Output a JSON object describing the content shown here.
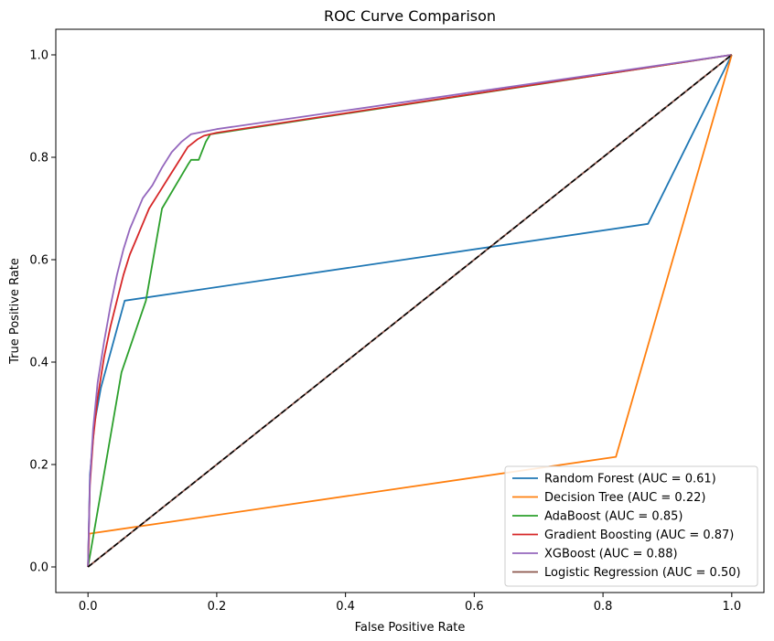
{
  "chart_data": {
    "type": "line",
    "title": "ROC Curve Comparison",
    "xlabel": "False Positive Rate",
    "ylabel": "True Positive Rate",
    "xlim": [
      -0.05,
      1.05
    ],
    "ylim": [
      -0.05,
      1.05
    ],
    "xticks": [
      "0.0",
      "0.2",
      "0.4",
      "0.6",
      "0.8",
      "1.0"
    ],
    "yticks": [
      "0.0",
      "0.2",
      "0.4",
      "0.6",
      "0.8",
      "1.0"
    ],
    "grid": false,
    "legend_position": "lower-right",
    "series": [
      {
        "name": "Random Forest (AUC = 0.61)",
        "color": "#1f77b4",
        "x": [
          0,
          0.003,
          0.01,
          0.02,
          0.057,
          0.87,
          1.0
        ],
        "y": [
          0,
          0.18,
          0.28,
          0.35,
          0.52,
          0.67,
          1.0
        ]
      },
      {
        "name": "Decision Tree (AUC = 0.22)",
        "color": "#ff7f0e",
        "x": [
          0,
          0.002,
          0.82,
          1.0
        ],
        "y": [
          0,
          0.065,
          0.215,
          1.0
        ]
      },
      {
        "name": "AdaBoost (AUC = 0.85)",
        "color": "#2ca02c",
        "x": [
          0,
          0.052,
          0.09,
          0.115,
          0.155,
          0.16,
          0.172,
          0.183,
          0.19,
          1.0
        ],
        "y": [
          0,
          0.38,
          0.52,
          0.7,
          0.785,
          0.795,
          0.795,
          0.83,
          0.845,
          1.0
        ]
      },
      {
        "name": "Gradient Boosting (AUC = 0.87)",
        "color": "#d62728",
        "x": [
          0,
          0.003,
          0.008,
          0.015,
          0.025,
          0.035,
          0.045,
          0.055,
          0.065,
          0.075,
          0.085,
          0.095,
          0.11,
          0.125,
          0.14,
          0.155,
          0.17,
          0.18,
          0.2,
          1.0
        ],
        "y": [
          0,
          0.16,
          0.25,
          0.33,
          0.41,
          0.47,
          0.52,
          0.57,
          0.61,
          0.64,
          0.67,
          0.7,
          0.73,
          0.76,
          0.79,
          0.82,
          0.835,
          0.842,
          0.848,
          1.0
        ]
      },
      {
        "name": "XGBoost (AUC = 0.88)",
        "color": "#9467bd",
        "x": [
          0,
          0.003,
          0.008,
          0.015,
          0.025,
          0.035,
          0.045,
          0.055,
          0.065,
          0.075,
          0.085,
          0.1,
          0.115,
          0.13,
          0.145,
          0.16,
          0.18,
          0.2,
          1.0
        ],
        "y": [
          0,
          0.17,
          0.27,
          0.36,
          0.44,
          0.51,
          0.57,
          0.62,
          0.66,
          0.69,
          0.72,
          0.745,
          0.78,
          0.81,
          0.83,
          0.845,
          0.85,
          0.855,
          1.0
        ]
      },
      {
        "name": "Logistic Regression (AUC = 0.50)",
        "color": "#8c564b",
        "x": [
          0,
          1.0
        ],
        "y": [
          0,
          1.0
        ]
      }
    ],
    "reference_line": {
      "x": [
        0,
        1
      ],
      "y": [
        0,
        1
      ],
      "color": "#000000",
      "dash": true
    }
  }
}
